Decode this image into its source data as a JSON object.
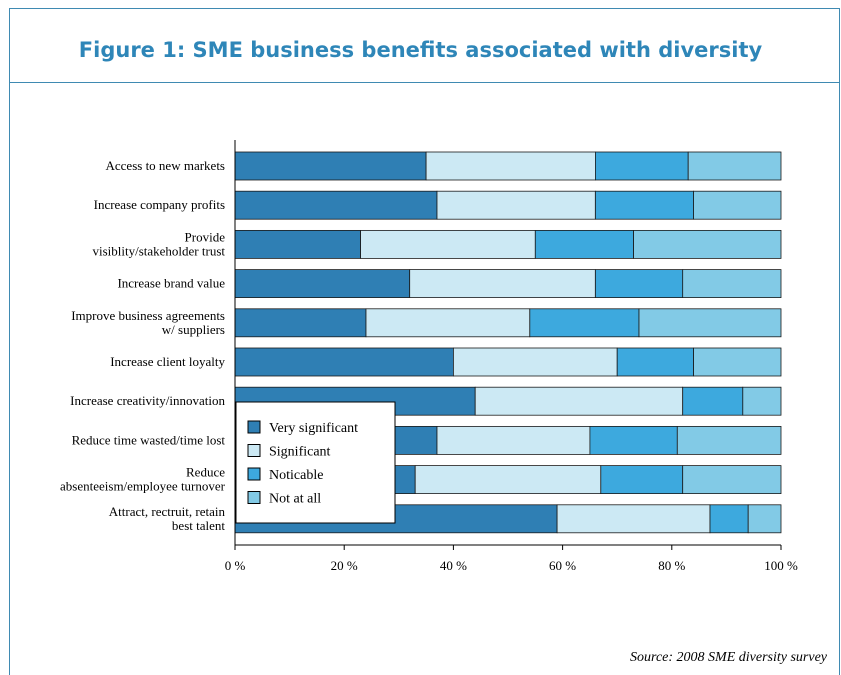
{
  "header": {
    "title": "Figure 1: SME business benefits associated with diversity"
  },
  "footer": {
    "source": "Source: 2008 SME diversity survey"
  },
  "chart_data": {
    "type": "bar",
    "orientation": "horizontal",
    "stacked": true,
    "title": "Figure 1: SME business benefits associated with diversity",
    "categories": [
      [
        "Access to new markets"
      ],
      [
        "Increase company profits"
      ],
      [
        "Provide",
        "visiblity/stakeholder trust"
      ],
      [
        "Increase brand value"
      ],
      [
        "Improve business agreements",
        "w/ suppliers"
      ],
      [
        "Increase client loyalty"
      ],
      [
        "Increase creativity/innovation"
      ],
      [
        "Reduce time wasted/time lost"
      ],
      [
        "Reduce",
        "absenteeism/employee turnover"
      ],
      [
        "Attract, rectruit, retain",
        "best talent"
      ]
    ],
    "series": [
      {
        "name": "Very significant",
        "color": "#2f7fb4",
        "values": [
          35,
          37,
          23,
          32,
          24,
          40,
          44,
          37,
          33,
          59
        ]
      },
      {
        "name": "Significant",
        "color": "#cce9f4",
        "values": [
          31,
          29,
          32,
          34,
          30,
          30,
          38,
          28,
          34,
          28
        ]
      },
      {
        "name": "Noticable",
        "color": "#3da9de",
        "values": [
          17,
          18,
          18,
          16,
          20,
          14,
          11,
          16,
          15,
          7
        ]
      },
      {
        "name": "Not at all",
        "color": "#82cae6",
        "values": [
          17,
          16,
          27,
          18,
          26,
          16,
          7,
          19,
          18,
          6
        ]
      }
    ],
    "x_ticks": [
      "0 %",
      "20 %",
      "40 %",
      "60 %",
      "80 %",
      "100 %"
    ],
    "xlim": [
      0,
      100
    ],
    "grid": false,
    "legend_position": "lower-left, inside plot"
  }
}
